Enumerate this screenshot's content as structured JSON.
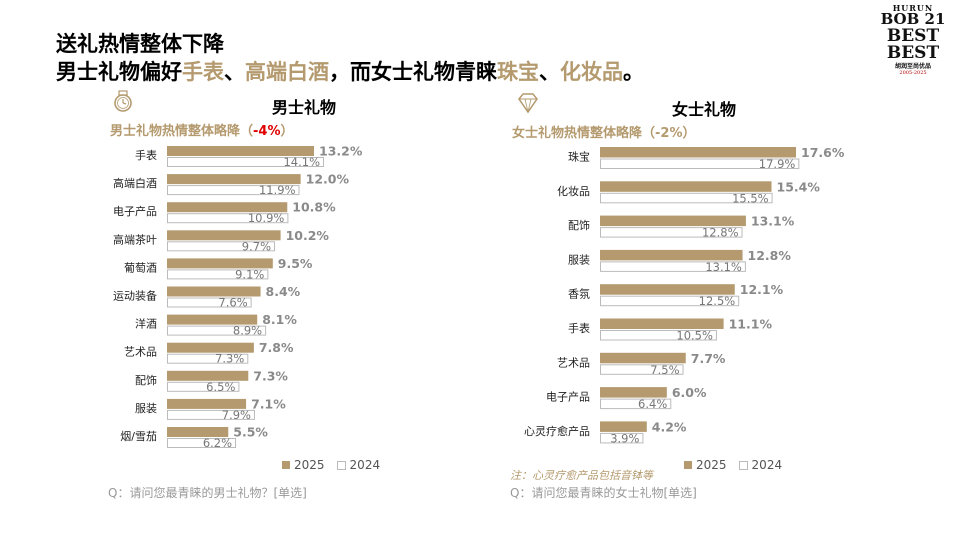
{
  "title": {
    "line1": "送礼热情整体下降",
    "line2_parts": [
      {
        "text": "男士礼物偏好",
        "hl": false
      },
      {
        "text": "手表",
        "hl": true
      },
      {
        "text": "、",
        "hl": false
      },
      {
        "text": "高端白酒",
        "hl": true
      },
      {
        "text": "，而女士礼物青睐",
        "hl": false
      },
      {
        "text": "珠宝",
        "hl": true
      },
      {
        "text": "、",
        "hl": false
      },
      {
        "text": "化妆品",
        "hl": true
      },
      {
        "text": "。",
        "hl": false
      }
    ]
  },
  "logo": {
    "line1": "HURUN",
    "line2": "BOB 21",
    "line3": "BEST",
    "line4": "BEST",
    "line5": "胡润至尚优品",
    "line6": "2005-2025"
  },
  "colors": {
    "series2025": "#b49a6e",
    "series2024_border": "#bbbbbb",
    "accent": "#b49a6e",
    "negative": "#e00000"
  },
  "legend": {
    "label_2025": "2025",
    "label_2024": "2024"
  },
  "men": {
    "heading": "男士礼物",
    "sub_prefix": "男士礼物热情整体略降（",
    "sub_value": "-4%",
    "sub_suffix": "）",
    "icon": "watch-icon",
    "question": "Q：请问您最青睐的男士礼物？[单选]"
  },
  "women": {
    "heading": "女士礼物",
    "sub_text": "女士礼物热情整体略降（-2%）",
    "icon": "diamond-icon",
    "note": "注：心灵疗愈产品包括音钵等",
    "question": "Q：请问您最青睐的女士礼物[单选]"
  },
  "chart_data": [
    {
      "type": "bar",
      "orientation": "horizontal",
      "title": "男士礼物",
      "categories": [
        "手表",
        "高端白酒",
        "电子产品",
        "高端茶叶",
        "葡萄酒",
        "运动装备",
        "洋酒",
        "艺术品",
        "配饰",
        "服装",
        "烟/雪茄"
      ],
      "series": [
        {
          "name": "2025",
          "values": [
            13.2,
            12.0,
            10.8,
            10.2,
            9.5,
            8.4,
            8.1,
            7.8,
            7.3,
            7.1,
            5.5
          ],
          "labels": [
            "13.2%",
            "12.0%",
            "10.8%",
            "10.2%",
            "9.5%",
            "8.4%",
            "8.1%",
            "7.8%",
            "7.3%",
            "7.1%",
            "5.5%"
          ]
        },
        {
          "name": "2024",
          "values": [
            14.1,
            11.9,
            10.9,
            9.7,
            9.1,
            7.6,
            8.9,
            7.3,
            6.5,
            7.9,
            6.2
          ],
          "labels": [
            "14.1%",
            "11.9%",
            "10.9%",
            "9.7%",
            "9.1%",
            "7.6%",
            "8.9%",
            "7.3%",
            "6.5%",
            "7.9%",
            "6.2%"
          ]
        }
      ],
      "legend": "bottom"
    },
    {
      "type": "bar",
      "orientation": "horizontal",
      "title": "女士礼物",
      "categories": [
        "珠宝",
        "化妆品",
        "配饰",
        "服装",
        "香氛",
        "手表",
        "艺术品",
        "电子产品",
        "心灵疗愈产品"
      ],
      "series": [
        {
          "name": "2025",
          "values": [
            17.6,
            15.4,
            13.1,
            12.8,
            12.1,
            11.1,
            7.7,
            6.0,
            4.2
          ],
          "labels": [
            "17.6%",
            "15.4%",
            "13.1%",
            "12.8%",
            "12.1%",
            "11.1%",
            "7.7%",
            "6.0%",
            "4.2%"
          ]
        },
        {
          "name": "2024",
          "values": [
            17.9,
            15.5,
            12.8,
            13.1,
            12.5,
            10.5,
            7.5,
            6.4,
            3.9
          ],
          "labels": [
            "17.9%",
            "15.5%",
            "12.8%",
            "13.1%",
            "12.5%",
            "10.5%",
            "7.5%",
            "6.4%",
            "3.9%"
          ]
        }
      ],
      "legend": "bottom"
    }
  ]
}
